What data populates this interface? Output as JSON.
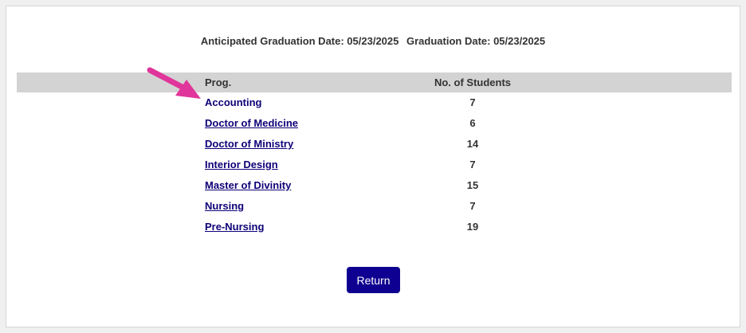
{
  "header": {
    "anticipated_label": "Anticipated Graduation Date: 05/23/2025",
    "graduation_label": "Graduation Date: 05/23/2025"
  },
  "table": {
    "columns": [
      "Prog.",
      "No. of Students"
    ],
    "rows": [
      {
        "program": "Accounting",
        "students": "7"
      },
      {
        "program": "Doctor of Medicine",
        "students": "6"
      },
      {
        "program": "Doctor of Ministry",
        "students": "14"
      },
      {
        "program": "Interior Design",
        "students": "7"
      },
      {
        "program": "Master of Divinity",
        "students": "15"
      },
      {
        "program": "Nursing",
        "students": "7"
      },
      {
        "program": "Pre-Nursing",
        "students": "19"
      }
    ]
  },
  "return_label": "Return",
  "colors": {
    "link": "#0e0077",
    "button": "#0e0090",
    "header_bg": "#d3d3d3",
    "annotation_arrow": "#e0359a"
  }
}
